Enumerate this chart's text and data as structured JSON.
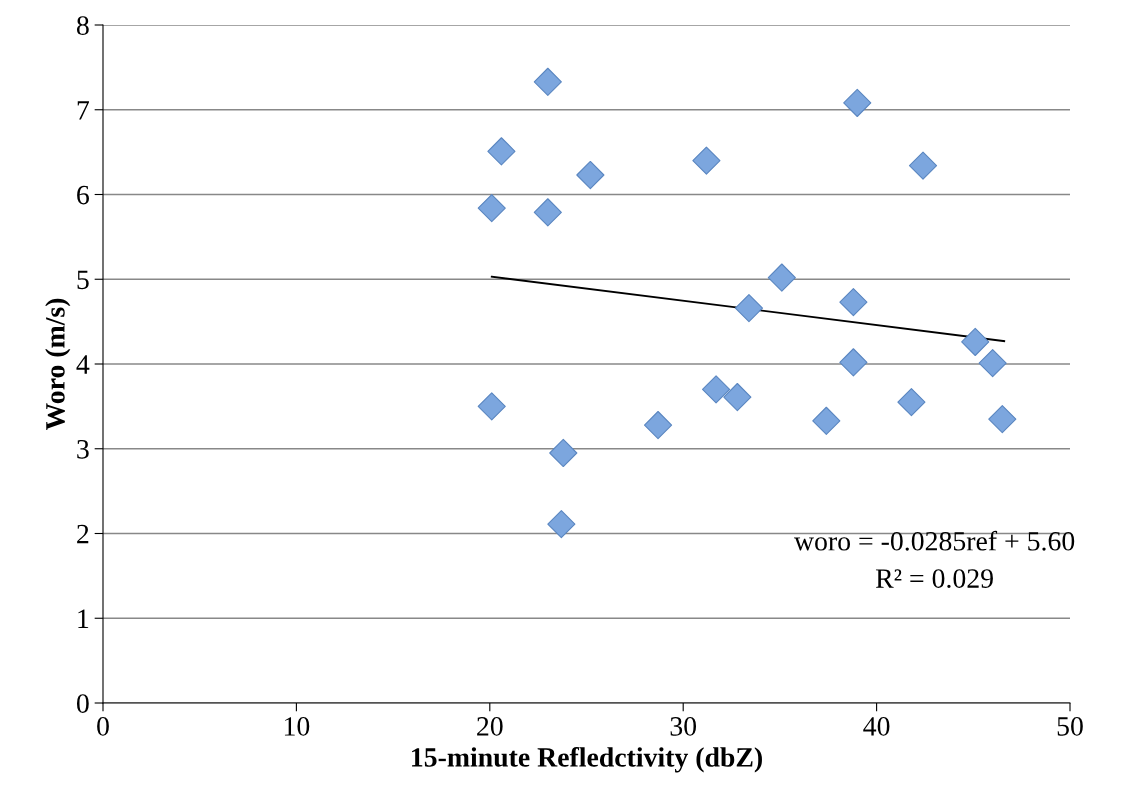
{
  "chart_data": {
    "type": "scatter",
    "xlabel": "15-minute Refledctivity (dbZ)",
    "ylabel": "Woro (m/s)",
    "xlim": [
      0,
      50
    ],
    "xticks": [
      0,
      10,
      20,
      30,
      40,
      50
    ],
    "ylim": [
      0,
      8
    ],
    "yticks": [
      0,
      1,
      2,
      3,
      4,
      5,
      6,
      7,
      8
    ],
    "grid": "y",
    "series": [
      {
        "marker": "diamond",
        "color": "#7ca6de",
        "x": [
          20.1,
          20.1,
          20.6,
          23.0,
          23.0,
          23.8,
          23.7,
          25.2,
          28.7,
          31.2,
          31.7,
          32.8,
          33.4,
          35.1,
          37.4,
          38.8,
          38.8,
          39.0,
          42.4,
          41.8,
          45.1,
          46.0,
          46.5
        ],
        "values": [
          5.84,
          3.5,
          6.51,
          7.33,
          5.79,
          2.95,
          2.11,
          6.23,
          3.28,
          6.4,
          3.7,
          3.61,
          4.66,
          5.02,
          3.33,
          4.73,
          4.02,
          7.08,
          6.34,
          3.55,
          4.26,
          4.01,
          3.35
        ]
      },
      {
        "type": "line",
        "marker": "none",
        "color": "#000000",
        "x": [
          20.1,
          46.6
        ],
        "values": [
          5.03,
          4.27
        ]
      }
    ],
    "annotations": [
      "woro = -0.0285ref + 5.60",
      "R² = 0.029"
    ]
  }
}
